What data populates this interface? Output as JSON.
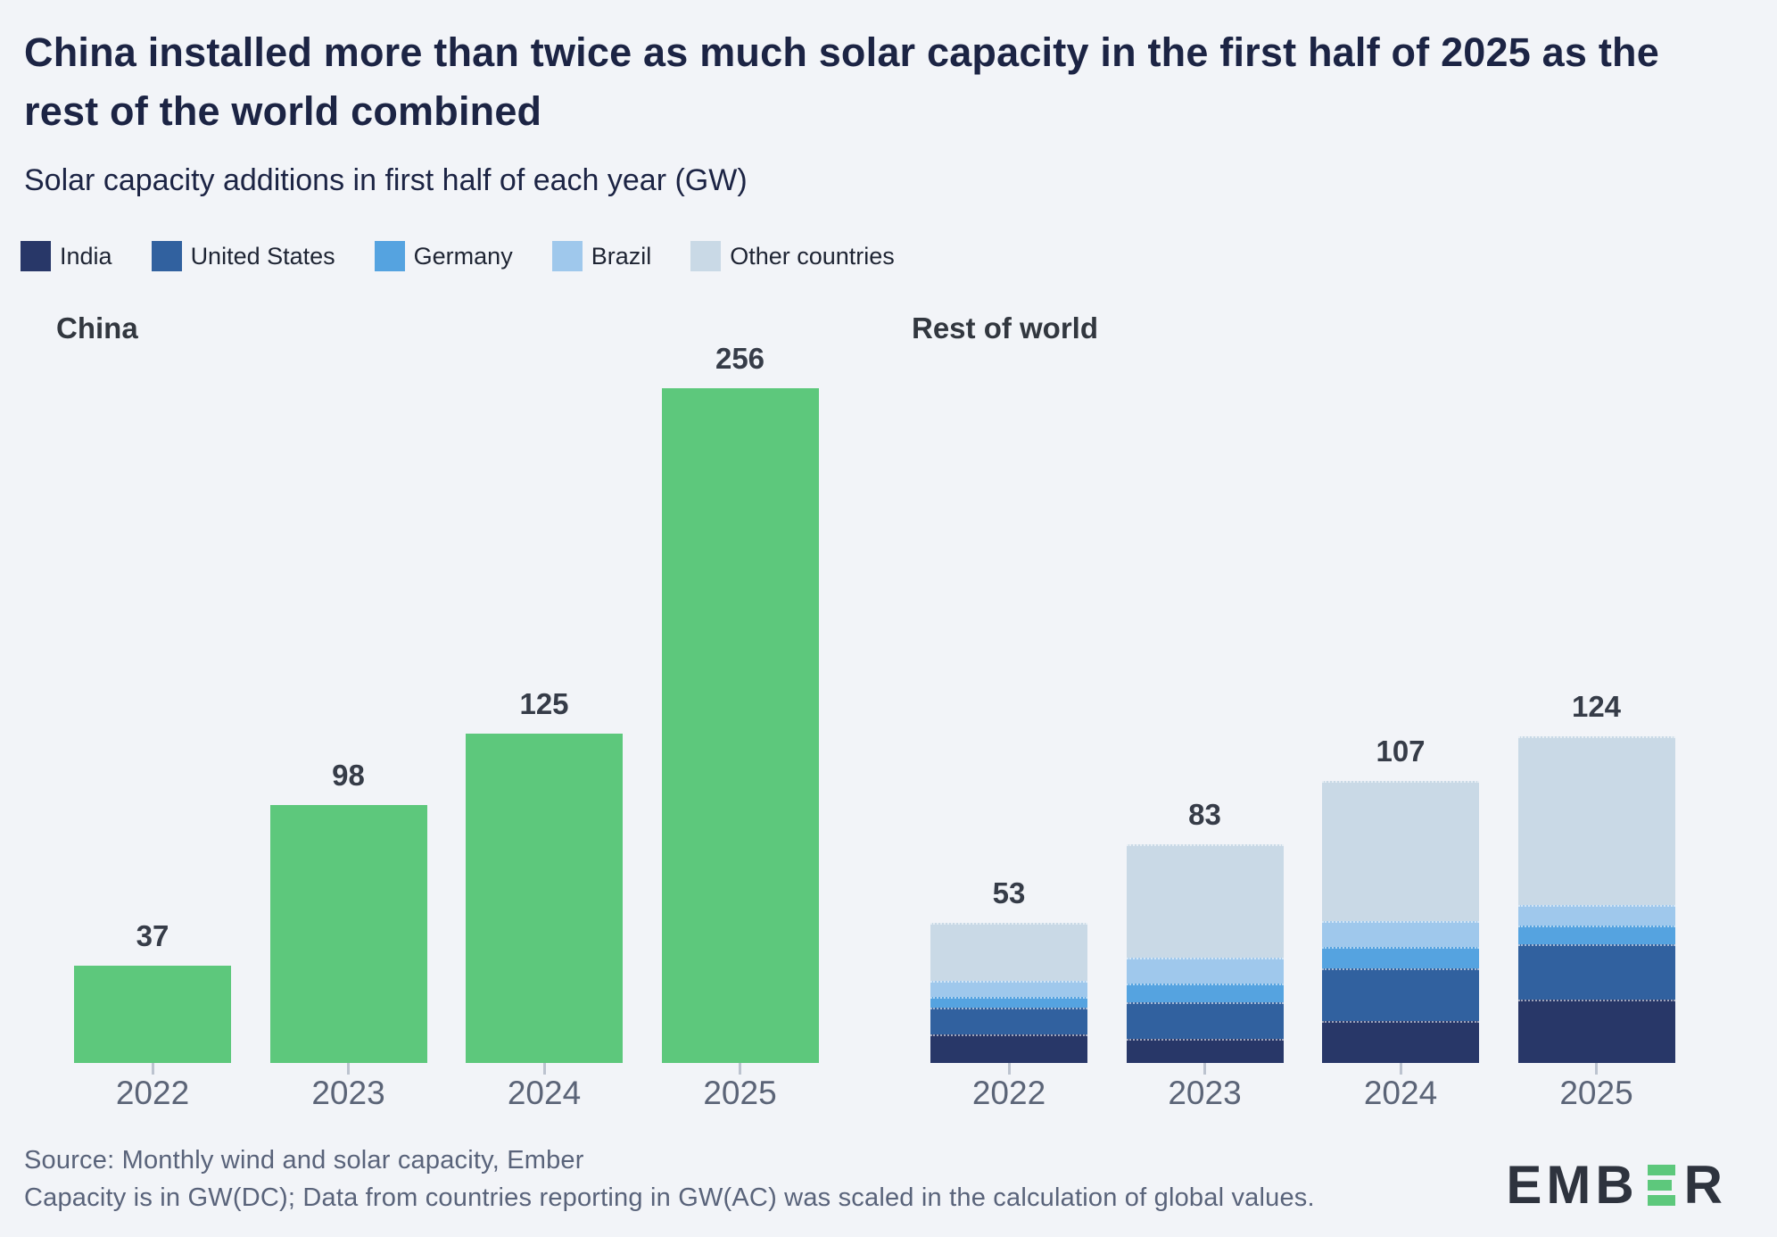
{
  "header": {
    "title": "China installed more than twice as much solar capacity in the first half of 2025 as the rest of the world combined",
    "subtitle": "Solar capacity additions in first half of each year (GW)"
  },
  "legend": {
    "items": [
      {
        "label": "India",
        "color": "#283768"
      },
      {
        "label": "United States",
        "color": "#31619f"
      },
      {
        "label": "Germany",
        "color": "#55a3e0"
      },
      {
        "label": "Brazil",
        "color": "#9fc8ec"
      },
      {
        "label": "Other countries",
        "color": "#c9d9e6"
      }
    ]
  },
  "chart_data": [
    {
      "type": "bar",
      "title": "China",
      "categories": [
        "2022",
        "2023",
        "2024",
        "2025"
      ],
      "values": [
        37,
        98,
        125,
        256
      ],
      "bar_color": "#5dc87c",
      "unit": "GW",
      "value_labels": [
        37,
        98,
        125,
        256
      ],
      "ylim": [
        0,
        256
      ],
      "grid": false,
      "legend_position": "none"
    },
    {
      "type": "bar",
      "stacked": true,
      "title": "Rest of world",
      "categories": [
        "2022",
        "2023",
        "2024",
        "2025"
      ],
      "series": [
        {
          "name": "India",
          "color": "#283768",
          "values": [
            11,
            9,
            16,
            24
          ]
        },
        {
          "name": "United States",
          "color": "#31619f",
          "values": [
            10,
            14,
            20,
            21
          ]
        },
        {
          "name": "Germany",
          "color": "#55a3e0",
          "values": [
            4,
            7,
            8,
            7
          ]
        },
        {
          "name": "Brazil",
          "color": "#9fc8ec",
          "values": [
            6,
            10,
            10,
            8
          ]
        },
        {
          "name": "Other countries",
          "color": "#c9d9e6",
          "values": [
            22,
            43,
            53,
            64
          ]
        }
      ],
      "totals": [
        53,
        83,
        107,
        124
      ],
      "unit": "GW",
      "value_labels": [
        53,
        83,
        107,
        124
      ],
      "ylim": [
        0,
        256
      ],
      "grid": false,
      "legend_position": "top-left"
    }
  ],
  "footer": {
    "source_line1": "Source: Monthly wind and solar capacity, Ember",
    "source_line2": "Capacity is in GW(DC); Data from countries reporting in GW(AC) was scaled in the calculation of global values.",
    "logo": {
      "prefix": "EMB",
      "suffix": "R",
      "accent_color": "#5dc87c",
      "text_color": "#2e333e"
    }
  },
  "theme": {
    "background": "#f2f4f8",
    "title_color": "#1c2444",
    "panel_title_color": "#32373f",
    "value_label_color": "#363c48",
    "axis_label_color": "#5b6477",
    "tick_color": "#bcc3cf",
    "source_color": "#59637a",
    "china_green": "#5dc87c"
  }
}
